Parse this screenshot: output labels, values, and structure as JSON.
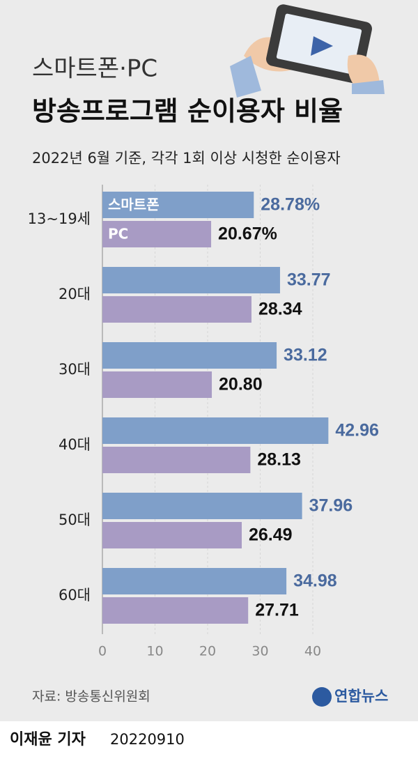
{
  "chart_data": {
    "type": "hbar",
    "title": "방송프로그램 순이용자 비율",
    "supertitle": "스마트폰·PC",
    "subtitle": "2022년 6월 기준, 각각 1회 이상 시청한 순이용자",
    "categories": [
      "13~19세",
      "20대",
      "30대",
      "40대",
      "50대",
      "60대"
    ],
    "series": [
      {
        "name": "스마트폰",
        "color": "#7f9fc9",
        "label_color": "#4a6a9e",
        "values": [
          28.78,
          33.77,
          33.12,
          42.96,
          37.96,
          34.98
        ],
        "value_labels": [
          "28.78%",
          "33.77",
          "33.12",
          "42.96",
          "37.96",
          "34.98"
        ]
      },
      {
        "name": "PC",
        "color": "#a89bc4",
        "label_color": "#111111",
        "values": [
          20.67,
          28.34,
          20.8,
          28.13,
          26.49,
          27.71
        ],
        "value_labels": [
          "20.67%",
          "28.34",
          "20.80",
          "28.13",
          "26.49",
          "27.71"
        ]
      }
    ],
    "xlim": [
      0,
      45
    ],
    "xticks": [
      0,
      10,
      20,
      30,
      40
    ],
    "grid": true,
    "source": "자료: 방송통신위원회",
    "logo": "연합뉴스",
    "byline": "이재윤 기자",
    "date": "20220910"
  }
}
